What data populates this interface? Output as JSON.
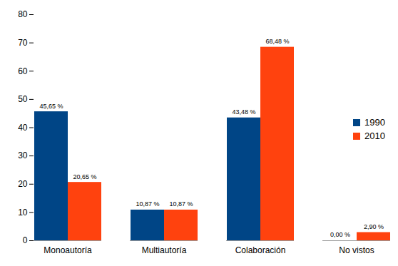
{
  "chart_data": {
    "type": "bar",
    "categories": [
      "Monoautoría",
      "Multiautoría",
      "Colaboración",
      "No vistos"
    ],
    "series": [
      {
        "name": "1990",
        "color": "#004586",
        "values": [
          45.65,
          10.87,
          43.48,
          0.0
        ],
        "value_labels": [
          "45,65 %",
          "10,87 %",
          "43,48 %",
          "0,00 %"
        ]
      },
      {
        "name": "2010",
        "color": "#ff420e",
        "values": [
          20.65,
          10.87,
          68.48,
          2.9
        ],
        "value_labels": [
          "20,65 %",
          "10,87 %",
          "68,48 %",
          "2,90 %"
        ]
      }
    ],
    "ylim": [
      0,
      80
    ],
    "yticks": [
      0,
      10,
      20,
      30,
      40,
      50,
      60,
      70,
      80
    ],
    "grid": false,
    "legend": "right",
    "data_labels": true
  }
}
